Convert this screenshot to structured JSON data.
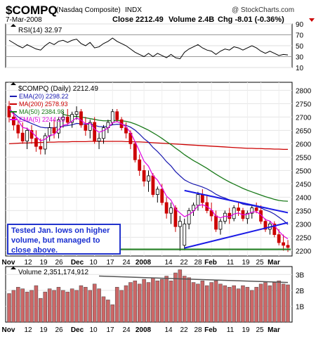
{
  "header": {
    "symbol": "$COMPQ",
    "name": "(Nasdaq Composite)",
    "exchange": "INDX",
    "date": "7-Mar-2008",
    "close": "Close 2212.49",
    "volume": "Volume 2.4B",
    "change": "Chg -8.01 (-0.36%)",
    "watermark": "@ StockCharts.com"
  },
  "colors": {
    "ema20": "#1a1ab0",
    "ma200": "#cc0000",
    "ma50": "#1a7a1a",
    "ema5": "#e000e0",
    "up": "#000000",
    "down": "#cc0000",
    "trend": "#1a1ae6",
    "support": "#1a7a1a",
    "volume_bar": "#cc6666",
    "rsi_line": "#000000",
    "annotation": "#1a2fd0"
  },
  "rsi": {
    "label": "RSI(14) 32.97",
    "ticks": [
      "90",
      "70",
      "50",
      "30",
      "10"
    ]
  },
  "price_legend": {
    "title": "$COMPQ (Daily) 2212.49",
    "items": [
      {
        "label": "EMA(20) 2298.22",
        "color_key": "ema20"
      },
      {
        "label": "MA(200) 2578.93",
        "color_key": "ma200"
      },
      {
        "label": "MA(50) 2384.98",
        "color_key": "ma50"
      },
      {
        "label": "EMA(5) 2244.23",
        "color_key": "ema5"
      }
    ]
  },
  "price_ticks": [
    "2800",
    "2750",
    "2700",
    "2650",
    "2600",
    "2550",
    "2500",
    "2450",
    "2400",
    "2350",
    "2300",
    "2250",
    "2200"
  ],
  "volume_panel": {
    "label": "Volume 2,351,174,912",
    "ticks": [
      "3B",
      "2B",
      "1B"
    ]
  },
  "x_labels": [
    {
      "text": "Nov",
      "bold": true
    },
    {
      "text": "12",
      "bold": false
    },
    {
      "text": "19",
      "bold": false
    },
    {
      "text": "26",
      "bold": false
    },
    {
      "text": "Dec",
      "bold": true
    },
    {
      "text": "10",
      "bold": false
    },
    {
      "text": "17",
      "bold": false
    },
    {
      "text": "24",
      "bold": false
    },
    {
      "text": "2008",
      "bold": true
    },
    {
      "text": "14",
      "bold": false
    },
    {
      "text": "22",
      "bold": false
    },
    {
      "text": "28",
      "bold": false
    },
    {
      "text": "Feb",
      "bold": true
    },
    {
      "text": "11",
      "bold": false
    },
    {
      "text": "19",
      "bold": false
    },
    {
      "text": "25",
      "bold": false
    },
    {
      "text": "Mar",
      "bold": true
    }
  ],
  "annotation": "Tested Jan. lows on higher volume, but managed to close above.",
  "chart_data": {
    "type": "candlestick",
    "title": "$COMPQ (Daily) 2212.49",
    "ylim": [
      2180,
      2830
    ],
    "rsi_ylim": [
      10,
      90
    ],
    "volume_ylim_billions": [
      0,
      3.5
    ],
    "candles": [
      {
        "o": 2740,
        "h": 2760,
        "l": 2680,
        "c": 2700
      },
      {
        "o": 2700,
        "h": 2720,
        "l": 2650,
        "c": 2670
      },
      {
        "o": 2670,
        "h": 2690,
        "l": 2620,
        "c": 2640
      },
      {
        "o": 2640,
        "h": 2680,
        "l": 2600,
        "c": 2610
      },
      {
        "o": 2610,
        "h": 2660,
        "l": 2580,
        "c": 2650
      },
      {
        "o": 2650,
        "h": 2670,
        "l": 2600,
        "c": 2620
      },
      {
        "o": 2620,
        "h": 2650,
        "l": 2570,
        "c": 2590
      },
      {
        "o": 2590,
        "h": 2620,
        "l": 2560,
        "c": 2580
      },
      {
        "o": 2580,
        "h": 2640,
        "l": 2560,
        "c": 2630
      },
      {
        "o": 2630,
        "h": 2680,
        "l": 2610,
        "c": 2660
      },
      {
        "o": 2660,
        "h": 2690,
        "l": 2620,
        "c": 2640
      },
      {
        "o": 2640,
        "h": 2700,
        "l": 2620,
        "c": 2690
      },
      {
        "o": 2690,
        "h": 2720,
        "l": 2660,
        "c": 2700
      },
      {
        "o": 2700,
        "h": 2730,
        "l": 2670,
        "c": 2680
      },
      {
        "o": 2680,
        "h": 2720,
        "l": 2660,
        "c": 2710
      },
      {
        "o": 2710,
        "h": 2740,
        "l": 2690,
        "c": 2720
      },
      {
        "o": 2720,
        "h": 2730,
        "l": 2660,
        "c": 2670
      },
      {
        "o": 2670,
        "h": 2700,
        "l": 2630,
        "c": 2650
      },
      {
        "o": 2650,
        "h": 2690,
        "l": 2620,
        "c": 2680
      },
      {
        "o": 2680,
        "h": 2700,
        "l": 2600,
        "c": 2610
      },
      {
        "o": 2610,
        "h": 2640,
        "l": 2580,
        "c": 2620
      },
      {
        "o": 2620,
        "h": 2670,
        "l": 2600,
        "c": 2660
      },
      {
        "o": 2660,
        "h": 2690,
        "l": 2640,
        "c": 2680
      },
      {
        "o": 2680,
        "h": 2730,
        "l": 2670,
        "c": 2720
      },
      {
        "o": 2720,
        "h": 2730,
        "l": 2680,
        "c": 2690
      },
      {
        "o": 2690,
        "h": 2700,
        "l": 2650,
        "c": 2660
      },
      {
        "o": 2660,
        "h": 2680,
        "l": 2620,
        "c": 2640
      },
      {
        "o": 2640,
        "h": 2650,
        "l": 2580,
        "c": 2600
      },
      {
        "o": 2600,
        "h": 2610,
        "l": 2530,
        "c": 2540
      },
      {
        "o": 2540,
        "h": 2560,
        "l": 2480,
        "c": 2500
      },
      {
        "o": 2500,
        "h": 2520,
        "l": 2440,
        "c": 2460
      },
      {
        "o": 2460,
        "h": 2500,
        "l": 2420,
        "c": 2480
      },
      {
        "o": 2480,
        "h": 2490,
        "l": 2400,
        "c": 2410
      },
      {
        "o": 2410,
        "h": 2440,
        "l": 2380,
        "c": 2430
      },
      {
        "o": 2430,
        "h": 2450,
        "l": 2370,
        "c": 2380
      },
      {
        "o": 2380,
        "h": 2400,
        "l": 2320,
        "c": 2340
      },
      {
        "o": 2340,
        "h": 2380,
        "l": 2300,
        "c": 2360
      },
      {
        "o": 2360,
        "h": 2370,
        "l": 2270,
        "c": 2290
      },
      {
        "o": 2290,
        "h": 2330,
        "l": 2200,
        "c": 2310
      },
      {
        "o": 2220,
        "h": 2320,
        "l": 2202,
        "c": 2300
      },
      {
        "o": 2300,
        "h": 2360,
        "l": 2280,
        "c": 2350
      },
      {
        "o": 2350,
        "h": 2380,
        "l": 2330,
        "c": 2370
      },
      {
        "o": 2370,
        "h": 2420,
        "l": 2350,
        "c": 2410
      },
      {
        "o": 2410,
        "h": 2430,
        "l": 2360,
        "c": 2380
      },
      {
        "o": 2380,
        "h": 2410,
        "l": 2340,
        "c": 2350
      },
      {
        "o": 2350,
        "h": 2380,
        "l": 2310,
        "c": 2330
      },
      {
        "o": 2330,
        "h": 2350,
        "l": 2270,
        "c": 2280
      },
      {
        "o": 2280,
        "h": 2320,
        "l": 2260,
        "c": 2310
      },
      {
        "o": 2310,
        "h": 2350,
        "l": 2300,
        "c": 2340
      },
      {
        "o": 2340,
        "h": 2360,
        "l": 2300,
        "c": 2320
      },
      {
        "o": 2320,
        "h": 2370,
        "l": 2310,
        "c": 2360
      },
      {
        "o": 2360,
        "h": 2380,
        "l": 2330,
        "c": 2350
      },
      {
        "o": 2350,
        "h": 2360,
        "l": 2310,
        "c": 2320
      },
      {
        "o": 2320,
        "h": 2350,
        "l": 2300,
        "c": 2340
      },
      {
        "o": 2340,
        "h": 2370,
        "l": 2320,
        "c": 2360
      },
      {
        "o": 2360,
        "h": 2380,
        "l": 2340,
        "c": 2350
      },
      {
        "o": 2350,
        "h": 2370,
        "l": 2300,
        "c": 2310
      },
      {
        "o": 2310,
        "h": 2320,
        "l": 2270,
        "c": 2280
      },
      {
        "o": 2280,
        "h": 2310,
        "l": 2260,
        "c": 2300
      },
      {
        "o": 2300,
        "h": 2310,
        "l": 2250,
        "c": 2260
      },
      {
        "o": 2260,
        "h": 2280,
        "l": 2220,
        "c": 2230
      },
      {
        "o": 2230,
        "h": 2260,
        "l": 2200,
        "c": 2220
      },
      {
        "o": 2220,
        "h": 2240,
        "l": 2195,
        "c": 2212
      }
    ],
    "ema20": [
      2730,
      2715,
      2700,
      2690,
      2683,
      2676,
      2669,
      2662,
      2660,
      2660,
      2660,
      2663,
      2666,
      2668,
      2671,
      2676,
      2675,
      2673,
      2674,
      2669,
      2664,
      2664,
      2665,
      2671,
      2673,
      2672,
      2669,
      2662,
      2651,
      2636,
      2619,
      2606,
      2586,
      2571,
      2553,
      2533,
      2517,
      2496,
      2480,
      2465,
      2456,
      2449,
      2444,
      2438,
      2431,
      2422,
      2411,
      2403,
      2397,
      2390,
      2386,
      2381,
      2374,
      2371,
      2369,
      2365,
      2360,
      2352,
      2346,
      2337,
      2325,
      2313,
      2298
    ],
    "ma200": [
      2600,
      2601,
      2602,
      2603,
      2603,
      2604,
      2604,
      2605,
      2605,
      2606,
      2606,
      2607,
      2607,
      2607,
      2608,
      2608,
      2608,
      2608,
      2609,
      2609,
      2609,
      2609,
      2609,
      2609,
      2609,
      2609,
      2608,
      2608,
      2607,
      2607,
      2606,
      2605,
      2604,
      2603,
      2602,
      2601,
      2600,
      2599,
      2598,
      2597,
      2596,
      2595,
      2594,
      2593,
      2592,
      2591,
      2590,
      2589,
      2588,
      2587,
      2586,
      2585,
      2584,
      2583,
      2583,
      2582,
      2582,
      2581,
      2581,
      2580,
      2580,
      2579,
      2579
    ],
    "ma50": [
      null,
      null,
      null,
      null,
      null,
      null,
      null,
      null,
      null,
      null,
      null,
      null,
      2710,
      2706,
      2703,
      2702,
      2700,
      2697,
      2694,
      2691,
      2688,
      2686,
      2686,
      2687,
      2687,
      2686,
      2684,
      2680,
      2674,
      2667,
      2659,
      2651,
      2641,
      2631,
      2620,
      2608,
      2597,
      2584,
      2572,
      2559,
      2548,
      2537,
      2528,
      2518,
      2508,
      2497,
      2486,
      2476,
      2466,
      2457,
      2449,
      2441,
      2433,
      2426,
      2420,
      2414,
      2408,
      2402,
      2397,
      2392,
      2388,
      2386,
      2385
    ],
    "ema5": [
      2730,
      2710,
      2687,
      2661,
      2657,
      2645,
      2627,
      2611,
      2617,
      2631,
      2634,
      2653,
      2669,
      2673,
      2685,
      2697,
      2688,
      2675,
      2677,
      2655,
      2643,
      2649,
      2659,
      2679,
      2683,
      2675,
      2663,
      2642,
      2608,
      2572,
      2535,
      2516,
      2481,
      2464,
      2436,
      2404,
      2389,
      2356,
      2341,
      2327,
      2335,
      2347,
      2368,
      2372,
      2365,
      2353,
      2329,
      2323,
      2329,
      2326,
      2337,
      2341,
      2334,
      2336,
      2344,
      2346,
      2334,
      2316,
      2311,
      2294,
      2273,
      2255,
      2244
    ],
    "rsi": [
      60,
      55,
      50,
      46,
      52,
      48,
      44,
      42,
      50,
      56,
      52,
      58,
      60,
      56,
      60,
      62,
      54,
      50,
      56,
      46,
      48,
      54,
      58,
      64,
      58,
      54,
      50,
      44,
      38,
      34,
      30,
      36,
      30,
      36,
      32,
      28,
      34,
      28,
      26,
      38,
      44,
      48,
      52,
      46,
      42,
      40,
      34,
      40,
      44,
      42,
      48,
      46,
      42,
      46,
      50,
      46,
      40,
      36,
      40,
      36,
      32,
      34,
      33
    ],
    "volume_billions": [
      1.8,
      2.0,
      2.2,
      2.1,
      1.9,
      2.0,
      2.3,
      1.5,
      1.9,
      2.1,
      2.0,
      2.2,
      2.0,
      1.9,
      2.1,
      2.0,
      2.3,
      2.2,
      2.0,
      2.4,
      2.1,
      1.6,
      1.4,
      1.1,
      2.2,
      2.0,
      2.3,
      2.5,
      2.6,
      2.4,
      2.7,
      2.5,
      2.8,
      2.6,
      2.7,
      2.9,
      2.6,
      3.1,
      3.3,
      2.9,
      2.8,
      2.5,
      2.4,
      2.6,
      2.3,
      2.5,
      2.6,
      2.4,
      2.3,
      2.2,
      2.3,
      2.1,
      2.3,
      2.2,
      2.0,
      2.2,
      2.4,
      2.5,
      2.3,
      2.5,
      2.6,
      2.4,
      2.35
    ],
    "trendline_upper": {
      "from_index": 39,
      "from_value": 2425,
      "to_index": 62,
      "to_value": 2342
    },
    "trendline_lower": {
      "from_index": 39,
      "from_value": 2210,
      "to_index": 62,
      "to_value": 2305
    },
    "support_line": {
      "from_index": 0,
      "to_index": 62,
      "value": 2205
    }
  }
}
